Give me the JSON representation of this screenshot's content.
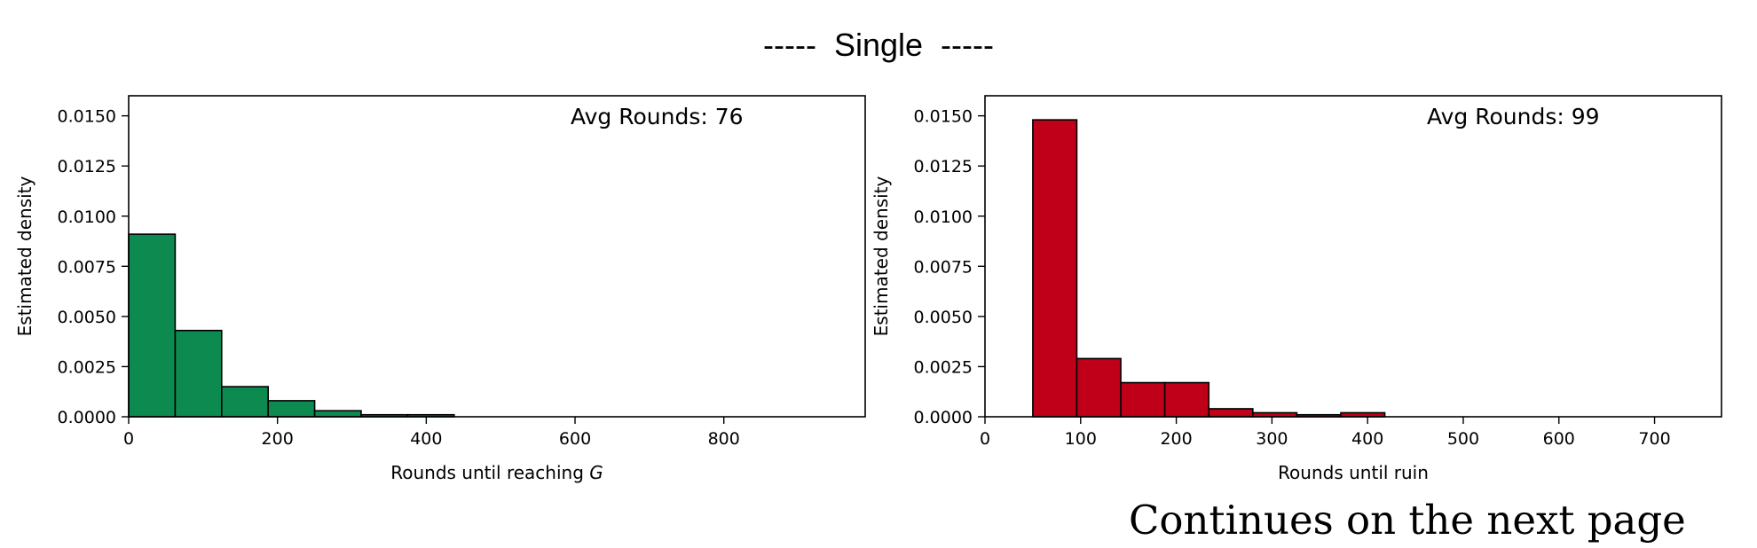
{
  "heading": "-----  Single  -----",
  "footer": "Continues on the next page",
  "chart_data": [
    {
      "type": "histogram",
      "annotation": "Avg Rounds: 76",
      "xlabel": "Rounds until reaching G",
      "ylabel": "Estimated density",
      "xlim": [
        0,
        990
      ],
      "ylim": [
        0,
        0.016
      ],
      "xticks": [
        0,
        200,
        400,
        600,
        800
      ],
      "yticks": [
        0,
        0.0025,
        0.005,
        0.0075,
        0.01,
        0.0125,
        0.015
      ],
      "ytick_labels": [
        "0.0000",
        "0.0025",
        "0.0050",
        "0.0075",
        "0.0100",
        "0.0125",
        "0.0150"
      ],
      "bar_color": "#0d8a50",
      "bins": [
        0,
        62.5,
        125,
        187.5,
        250,
        312.5,
        375,
        437.5
      ],
      "values": [
        0.0091,
        0.0043,
        0.0015,
        0.0008,
        0.0003,
        0.0001,
        0.0001
      ]
    },
    {
      "type": "histogram",
      "annotation": "Avg Rounds: 99",
      "xlabel": "Rounds until ruin",
      "ylabel": "Estimated density",
      "xlim": [
        0,
        770
      ],
      "ylim": [
        0,
        0.016
      ],
      "xticks": [
        0,
        100,
        200,
        300,
        400,
        500,
        600,
        700
      ],
      "yticks": [
        0,
        0.0025,
        0.005,
        0.0075,
        0.01,
        0.0125,
        0.015
      ],
      "ytick_labels": [
        "0.0000",
        "0.0025",
        "0.0050",
        "0.0075",
        "0.0100",
        "0.0125",
        "0.0150"
      ],
      "bar_color": "#c00018",
      "bins": [
        50,
        96,
        142,
        188,
        234,
        280,
        326,
        372,
        418
      ],
      "values": [
        0.0148,
        0.0029,
        0.0017,
        0.0017,
        0.0004,
        0.0002,
        0.0001,
        0.0002
      ]
    }
  ]
}
